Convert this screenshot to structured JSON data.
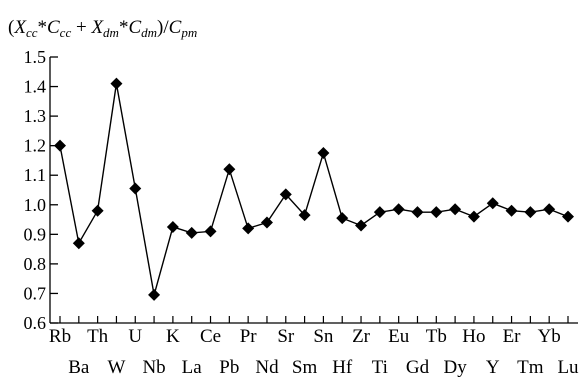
{
  "chart_data": {
    "type": "line",
    "title": "",
    "ylabel_parts": {
      "open": "(",
      "x1": "X",
      "x1_sub": "cc",
      "mult1": "*",
      "c1": "C",
      "c1_sub": "cc",
      "plus": " + ",
      "x2": "X",
      "x2_sub": "dm",
      "mult2": "*",
      "c2": "C",
      "c2_sub": "dm",
      "close_div": ")/",
      "c3": "C",
      "c3_sub": "pm"
    },
    "xlabel": "",
    "ylim": [
      0.6,
      1.5
    ],
    "yticks": [
      0.6,
      0.7,
      0.8,
      0.9,
      1.0,
      1.1,
      1.2,
      1.3,
      1.4,
      1.5
    ],
    "ytick_labels": [
      "0.6",
      "0.7",
      "0.8",
      "0.9",
      "1.0",
      "1.1",
      "1.2",
      "1.3",
      "1.4",
      "1.5"
    ],
    "categories": [
      "Rb",
      "Ba",
      "Th",
      "W",
      "U",
      "Nb",
      "K",
      "La",
      "Ce",
      "Pb",
      "Pr",
      "Nd",
      "Sr",
      "Sm",
      "Sn",
      "Hf",
      "Zr",
      "Ti",
      "Eu",
      "Gd",
      "Tb",
      "Dy",
      "Ho",
      "Y",
      "Er",
      "Tm",
      "Yb",
      "Lu"
    ],
    "values": [
      1.2,
      0.87,
      0.98,
      1.41,
      1.055,
      0.695,
      0.925,
      0.905,
      0.91,
      1.12,
      0.92,
      0.94,
      1.035,
      0.965,
      1.175,
      0.955,
      0.93,
      0.975,
      0.985,
      0.975,
      0.975,
      0.985,
      0.96,
      1.005,
      0.98,
      0.975,
      0.985,
      0.96
    ],
    "marker": "diamond",
    "color": "#000000",
    "grid": false,
    "legend": "none"
  }
}
